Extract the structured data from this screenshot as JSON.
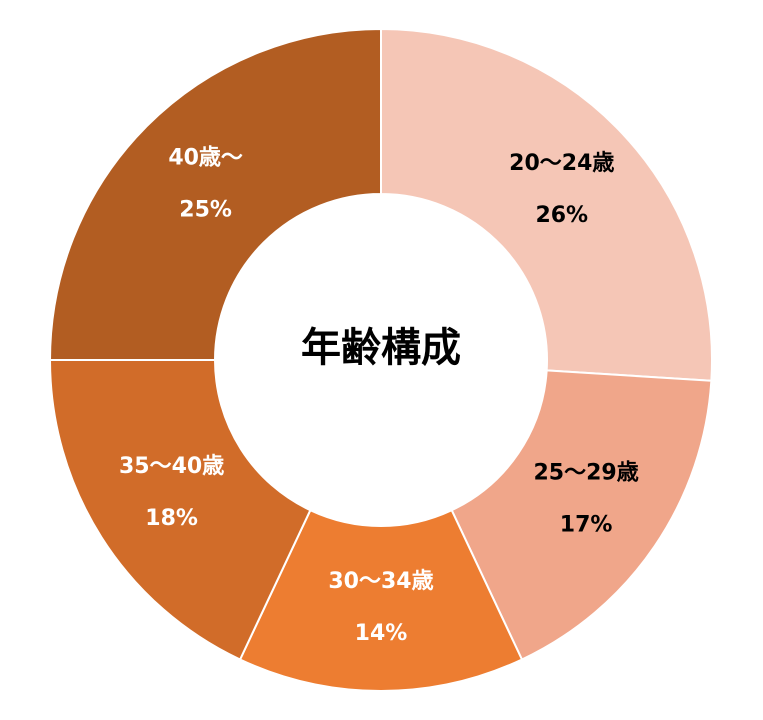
{
  "chart_data": {
    "type": "donut",
    "title": "年齢構成",
    "categories": [
      "20～24歳",
      "25～29歳",
      "30～34歳",
      "35～40歳",
      "40歳～"
    ],
    "values": [
      26,
      17,
      14,
      18,
      25
    ],
    "value_labels": [
      "26%",
      "17%",
      "14%",
      "18%",
      "25%"
    ],
    "colors": [
      "#f5c6b6",
      "#f0a68a",
      "#ed7d31",
      "#d16c29",
      "#b25d22"
    ]
  }
}
